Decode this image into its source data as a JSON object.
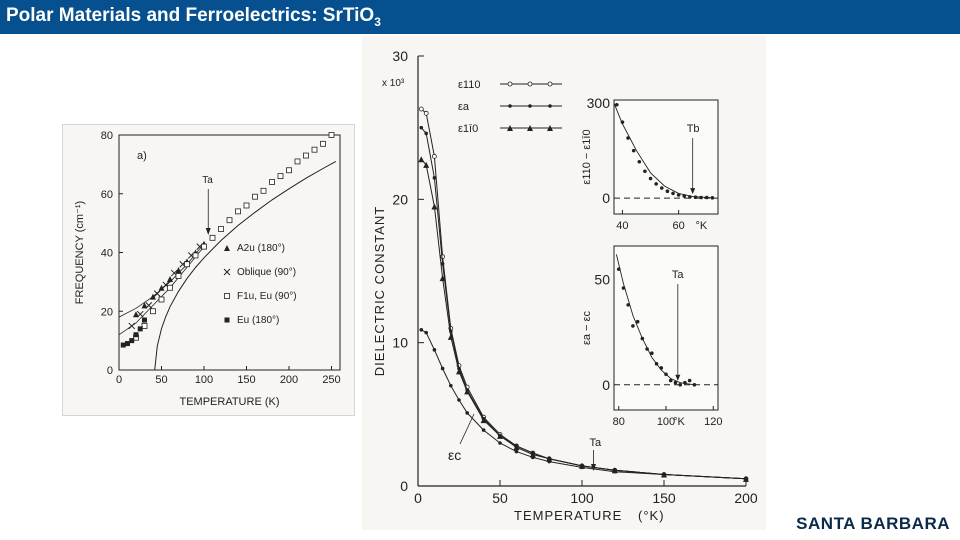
{
  "header": {
    "title": "Polar Materials and Ferroelectrics: SrTiO",
    "title_sub": "3"
  },
  "logo": {
    "text": "SANTA BARBARA"
  },
  "colors": {
    "header_bg": "#07508f",
    "header_text": "#ffffff"
  },
  "chart_data": [
    {
      "type": "scatter",
      "panel_label": "a)",
      "xlabel": "TEMPERATURE (K)",
      "ylabel": "FREQUENCY (cm⁻¹)",
      "xlim": [
        0,
        260
      ],
      "ylim": [
        0,
        80
      ],
      "x_ticks": [
        "0",
        "50",
        "100",
        "150",
        "200",
        "250"
      ],
      "y_ticks": [
        "0",
        "20",
        "40",
        "60",
        "80"
      ],
      "annotation": "Ta",
      "annotation_x": 105,
      "legend": [
        "A2u (180°)",
        "Oblique (90°)",
        "F1u, Eu (90°)",
        "Eu (180°)"
      ],
      "series": [
        {
          "marker": "triangle",
          "x": [
            20,
            30,
            40,
            50,
            60,
            70,
            80,
            90,
            100
          ],
          "y": [
            19,
            22,
            25,
            28,
            31,
            34,
            37,
            40,
            43
          ]
        },
        {
          "marker": "cross",
          "x": [
            15,
            25,
            35,
            45,
            55,
            65,
            75,
            85,
            95
          ],
          "y": [
            15,
            19,
            22,
            26,
            29,
            33,
            36,
            39,
            42
          ]
        },
        {
          "marker": "square-open",
          "x": [
            20,
            30,
            40,
            50,
            60,
            70,
            80,
            90,
            100,
            110,
            120,
            130,
            140,
            150,
            160,
            170,
            180,
            190,
            200,
            210,
            220,
            230,
            240,
            250
          ],
          "y": [
            11,
            15,
            20,
            24,
            28,
            32,
            36,
            39,
            42,
            45,
            48,
            51,
            54,
            56,
            59,
            61,
            64,
            66,
            68,
            71,
            73,
            75,
            77,
            80
          ]
        },
        {
          "marker": "square-filled",
          "x": [
            5,
            10,
            15,
            20,
            25,
            30
          ],
          "y": [
            8.5,
            9,
            10,
            12,
            14,
            17
          ]
        }
      ],
      "curve": {
        "x": [
          42,
          45,
          50,
          55,
          60,
          70,
          80,
          90,
          100,
          120,
          140,
          160,
          180,
          200,
          220,
          240,
          255
        ],
        "y": [
          0,
          8.2,
          14.1,
          18.2,
          21.5,
          26.8,
          31.1,
          34.9,
          38.2,
          44.1,
          49.2,
          53.7,
          57.9,
          61.7,
          65.3,
          68.6,
          71.0
        ]
      },
      "branch_curves": [
        {
          "x": [
            0,
            20,
            40,
            60,
            80,
            100
          ],
          "y": [
            18,
            21,
            25,
            30,
            36,
            43
          ]
        },
        {
          "x": [
            0,
            20,
            40,
            60,
            80,
            100
          ],
          "y": [
            12,
            16,
            22,
            28,
            35,
            42
          ]
        }
      ]
    },
    {
      "type": "line",
      "xlabel": "TEMPERATURE",
      "xlabel_unit": "(°K)",
      "ylabel": "DIELECTRIC   CONSTANT",
      "y_multiplier": "x 10³",
      "xlim": [
        0,
        200
      ],
      "ylim": [
        0,
        30
      ],
      "x_ticks": [
        "0",
        "50",
        "100",
        "150",
        "200"
      ],
      "y_ticks": [
        "0",
        "10",
        "20",
        "30"
      ],
      "annotation": "Ta",
      "annotation_x": 107,
      "legend": [
        "ε110",
        "εa",
        "ε1ī0"
      ],
      "curve_label": "εc",
      "series": [
        {
          "name": "ε110",
          "x": [
            2,
            5,
            10,
            15,
            20,
            25,
            30,
            40,
            50,
            60,
            70,
            80,
            100,
            120,
            150,
            200
          ],
          "y": [
            26.3,
            26.0,
            23.0,
            16.0,
            11.0,
            8.4,
            6.9,
            4.8,
            3.6,
            2.8,
            2.3,
            1.9,
            1.4,
            1.1,
            0.8,
            0.5
          ]
        },
        {
          "name": "εa",
          "x": [
            2,
            5,
            10,
            15,
            20,
            25,
            30,
            40,
            50,
            60,
            70,
            80,
            100,
            120,
            150,
            200
          ],
          "y": [
            25.0,
            24.6,
            21.5,
            15.5,
            10.8,
            8.2,
            6.7,
            4.7,
            3.5,
            2.8,
            2.3,
            1.9,
            1.4,
            1.1,
            0.8,
            0.5
          ]
        },
        {
          "name": "ε1ī0",
          "x": [
            2,
            5,
            10,
            15,
            20,
            25,
            30,
            40,
            50,
            60,
            70,
            80,
            100,
            120,
            150,
            200
          ],
          "y": [
            22.8,
            22.4,
            19.5,
            14.5,
            10.4,
            8.0,
            6.6,
            4.6,
            3.5,
            2.7,
            2.2,
            1.9,
            1.4,
            1.1,
            0.8,
            0.5
          ]
        },
        {
          "name": "εc",
          "x": [
            2,
            5,
            10,
            15,
            20,
            25,
            30,
            40,
            50,
            60,
            70,
            80,
            100,
            120,
            150,
            200
          ],
          "y": [
            10.9,
            10.7,
            9.5,
            8.2,
            7.0,
            6.0,
            5.1,
            3.9,
            3.0,
            2.4,
            2.0,
            1.7,
            1.3,
            1.0,
            0.8,
            0.5
          ]
        }
      ]
    },
    {
      "type": "scatter",
      "inset": "top",
      "ylabel": "ε110 − ε1ī0",
      "xlim": [
        37,
        74
      ],
      "ylim": [
        -50,
        310
      ],
      "x_ticks": [
        "40",
        "60"
      ],
      "x_unit": "°K",
      "y_ticks": [
        "0",
        "300"
      ],
      "annotation": "Tb",
      "annotation_x": 65,
      "points": {
        "x": [
          38,
          40,
          42,
          44,
          46,
          48,
          50,
          52,
          54,
          56,
          58,
          60,
          62,
          64,
          66,
          68,
          70,
          72
        ],
        "y": [
          295,
          240,
          190,
          150,
          115,
          85,
          62,
          45,
          32,
          22,
          15,
          10,
          7,
          4,
          3,
          2,
          2,
          1
        ]
      },
      "fit": {
        "x": [
          37,
          40,
          45,
          50,
          55,
          60,
          65,
          72
        ],
        "y": [
          300,
          235,
          150,
          80,
          38,
          15,
          5,
          1
        ]
      }
    },
    {
      "type": "scatter",
      "inset": "bottom",
      "ylabel": "εa − εc",
      "xlim": [
        78,
        122
      ],
      "ylim": [
        -12,
        66
      ],
      "x_ticks": [
        "80",
        "100",
        "120"
      ],
      "x_unit": "°K",
      "y_ticks": [
        "0",
        "50"
      ],
      "annotation": "Ta",
      "annotation_x": 105,
      "points": {
        "x": [
          80,
          82,
          84,
          86,
          88,
          90,
          92,
          94,
          96,
          98,
          100,
          102,
          104,
          106,
          108,
          110,
          112
        ],
        "y": [
          55,
          46,
          38,
          28,
          30,
          22,
          17,
          15,
          10,
          8,
          5,
          2,
          1,
          0,
          1,
          2,
          0
        ]
      },
      "fit": {
        "x": [
          79,
          82,
          86,
          90,
          94,
          98,
          102,
          106,
          112
        ],
        "y": [
          62,
          48,
          33,
          22,
          13,
          7,
          3,
          1,
          0
        ]
      }
    }
  ]
}
